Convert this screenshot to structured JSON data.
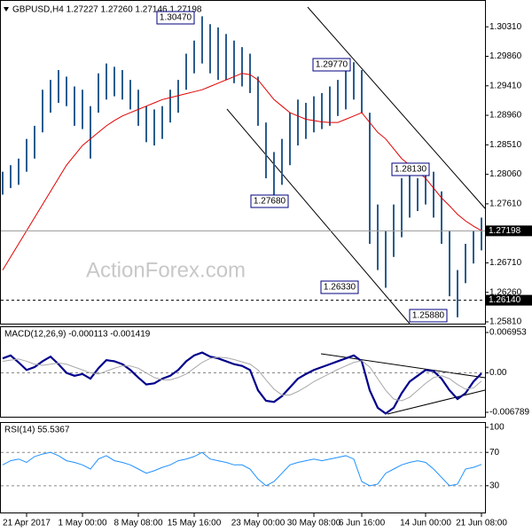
{
  "chart_data": [
    {
      "type": "ohlc",
      "title": "GBPUSD,H4  1.27227 1.27260 1.27146 1.27198",
      "watermark": "ActionForex.com",
      "color": "#2b5d8e",
      "high": [
        1.281,
        1.282,
        1.283,
        1.286,
        1.288,
        1.2935,
        1.295,
        1.2965,
        1.2955,
        1.294,
        1.2935,
        1.291,
        1.296,
        1.2975,
        1.297,
        1.2965,
        1.295,
        1.2935,
        1.291,
        1.2905,
        1.291,
        1.2935,
        1.295,
        1.299,
        1.301,
        1.3047,
        1.3035,
        1.303,
        1.302,
        1.301,
        1.3,
        1.299,
        1.2955,
        1.2885,
        1.284,
        1.286,
        1.29,
        1.292,
        1.2915,
        1.2925,
        1.293,
        1.294,
        1.295,
        1.2965,
        1.2977,
        1.2965,
        1.29,
        1.276,
        1.272,
        1.276,
        1.28,
        1.281,
        1.28,
        1.2813,
        1.281,
        1.278,
        1.272,
        1.266,
        1.27,
        1.272,
        1.274
      ],
      "low": [
        1.2775,
        1.2785,
        1.279,
        1.281,
        1.283,
        1.287,
        1.29,
        1.2915,
        1.291,
        1.288,
        1.2875,
        1.283,
        1.29,
        1.292,
        1.2925,
        1.292,
        1.2905,
        1.288,
        1.2855,
        1.285,
        1.286,
        1.2885,
        1.29,
        1.2935,
        1.296,
        1.2975,
        1.296,
        1.295,
        1.295,
        1.2945,
        1.294,
        1.293,
        1.288,
        1.28,
        1.2768,
        1.279,
        1.282,
        1.285,
        1.286,
        1.287,
        1.2875,
        1.288,
        1.2895,
        1.2905,
        1.292,
        1.29,
        1.27,
        1.266,
        1.2633,
        1.268,
        1.271,
        1.274,
        1.275,
        1.276,
        1.274,
        1.27,
        1.262,
        1.2588,
        1.264,
        1.267,
        1.269
      ],
      "ma": {
        "color": "#e00000",
        "values": [
          1.266,
          1.268,
          1.27,
          1.272,
          1.274,
          1.276,
          1.278,
          1.28,
          1.282,
          1.2835,
          1.285,
          1.286,
          1.287,
          1.288,
          1.2888,
          1.2895,
          1.29,
          1.2905,
          1.291,
          1.2915,
          1.292,
          1.2923,
          1.2926,
          1.2929,
          1.2932,
          1.2935,
          1.294,
          1.2945,
          1.295,
          1.2955,
          1.296,
          1.2958,
          1.295,
          1.2935,
          1.292,
          1.291,
          1.29,
          1.2895,
          1.289,
          1.2888,
          1.2886,
          1.2885,
          1.2885,
          1.289,
          1.2895,
          1.29,
          1.2885,
          1.287,
          1.286,
          1.2845,
          1.283,
          1.282,
          1.281,
          1.28,
          1.2785,
          1.277,
          1.2758,
          1.2745,
          1.2735,
          1.2727,
          1.272
        ]
      },
      "ylim": [
        1.25783,
        1.30705
      ],
      "yticks": [
        {
          "value": 1.3031,
          "label": "1.30310"
        },
        {
          "value": 1.2986,
          "label": "1.29860"
        },
        {
          "value": 1.2941,
          "label": "1.29410"
        },
        {
          "value": 1.2896,
          "label": "1.28960"
        },
        {
          "value": 1.2851,
          "label": "1.28510"
        },
        {
          "value": 1.2806,
          "label": "1.28060"
        },
        {
          "value": 1.2761,
          "label": "1.27610"
        },
        {
          "value": 1.2671,
          "label": "1.26710"
        },
        {
          "value": 1.2626,
          "label": "1.26260"
        },
        {
          "value": 1.2581,
          "label": "1.25810"
        }
      ],
      "hlines": [
        {
          "value": 1.27198,
          "label": "1.27198",
          "dashed": false
        },
        {
          "value": 1.2614,
          "label": "1.26140",
          "dashed": true
        }
      ],
      "annotations": [
        {
          "value": 1.3047,
          "label": "1.30470"
        },
        {
          "value": 1.2977,
          "label": "1.29770"
        },
        {
          "value": 1.2768,
          "label": "1.27680"
        },
        {
          "value": 1.2813,
          "label": "1.28130"
        },
        {
          "value": 1.2633,
          "label": "1.26330"
        },
        {
          "value": 1.2588,
          "label": "1.25880"
        }
      ]
    },
    {
      "type": "line",
      "title": "MACD(12,26,9) -0.000113 -0.001419",
      "series": [
        {
          "color": "#00008b",
          "width": 2.2,
          "values": [
            0.0025,
            0.003,
            0.0018,
            0.0005,
            0.001,
            0.002,
            0.0028,
            0.0015,
            0.0,
            -0.0005,
            -0.0002,
            -0.001,
            0.0008,
            0.0022,
            0.002,
            0.0015,
            0.0005,
            -0.0008,
            -0.002,
            -0.0018,
            -0.001,
            -0.0005,
            0.0005,
            0.002,
            0.003,
            0.0035,
            0.0028,
            0.0025,
            0.002,
            0.0015,
            0.0012,
            0.0005,
            -0.003,
            -0.0048,
            -0.005,
            -0.004,
            -0.0025,
            -0.001,
            -0.0002,
            0.0005,
            0.001,
            0.0015,
            0.002,
            0.0025,
            0.003,
            0.002,
            -0.003,
            -0.006,
            -0.007,
            -0.006,
            -0.0035,
            -0.0015,
            -0.0005,
            0.0005,
            0.0003,
            -0.001,
            -0.003,
            -0.0045,
            -0.0035,
            -0.0015,
            -0.0001
          ]
        },
        {
          "color": "#a8a8a8",
          "width": 1,
          "values": [
            0.002,
            0.0022,
            0.0024,
            0.002,
            0.0015,
            0.0013,
            0.0015,
            0.0017,
            0.0015,
            0.001,
            0.0005,
            0.0,
            -0.0002,
            0.0003,
            0.0008,
            0.0012,
            0.0012,
            0.0008,
            0.0,
            -0.0008,
            -0.0012,
            -0.0012,
            -0.0008,
            -0.0002,
            0.0008,
            0.0018,
            0.0025,
            0.0027,
            0.0026,
            0.0023,
            0.0019,
            0.0015,
            0.0005,
            -0.0012,
            -0.0028,
            -0.0038,
            -0.0038,
            -0.0032,
            -0.0024,
            -0.0015,
            -0.0008,
            -0.0001,
            0.0006,
            0.0012,
            0.0018,
            0.0021,
            0.001,
            -0.001,
            -0.003,
            -0.0045,
            -0.0048,
            -0.0042,
            -0.003,
            -0.0018,
            -0.0008,
            -0.0005,
            -0.001,
            -0.002,
            -0.0028,
            -0.0026,
            -0.0014
          ]
        }
      ],
      "ylim": [
        -0.00755,
        0.00787
      ],
      "yticks": [
        0.006953,
        {
          "value": 0,
          "label": "0.00"
        },
        -0.006789
      ],
      "levels": [
        0
      ]
    },
    {
      "type": "line",
      "title": "RSI(14) 55.5367",
      "series": [
        {
          "color": "#1e90ff",
          "width": 1,
          "values": [
            55,
            60,
            62,
            58,
            65,
            68,
            70,
            66,
            60,
            58,
            55,
            50,
            62,
            66,
            60,
            58,
            55,
            50,
            45,
            48,
            52,
            55,
            60,
            62,
            65,
            70,
            62,
            60,
            58,
            55,
            55,
            50,
            38,
            30,
            35,
            45,
            55,
            58,
            60,
            62,
            60,
            62,
            64,
            66,
            62,
            35,
            30,
            32,
            45,
            50,
            55,
            58,
            60,
            58,
            50,
            40,
            30,
            32,
            50,
            52,
            55.5367
          ]
        }
      ],
      "ylim": [
        -2.1,
        105.3
      ],
      "yticks": [
        100,
        70,
        30
      ],
      "levels": [
        70,
        30
      ],
      "xticks": [
        {
          "value": 3,
          "label": "21 Apr 2017"
        },
        {
          "value": 10,
          "label": "1 May 00:00"
        },
        {
          "value": 17,
          "label": "8 May 08:00"
        },
        {
          "value": 24,
          "label": "15 May 16:00"
        },
        {
          "value": 32,
          "label": "23 May 00:00"
        },
        {
          "value": 39,
          "label": "30 May 08:00"
        },
        {
          "value": 45,
          "label": "6 Jun 16:00"
        },
        {
          "value": 53,
          "label": "14 Jun 00:00"
        },
        {
          "value": 60,
          "label": "21 Jun 08:00"
        }
      ]
    }
  ]
}
